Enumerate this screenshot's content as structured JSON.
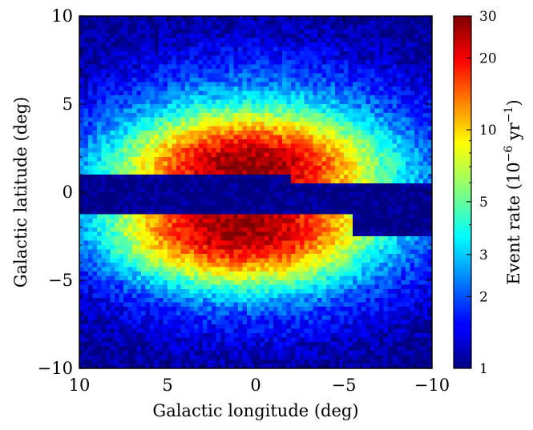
{
  "chart_data": {
    "type": "heatmap",
    "title": "",
    "xlabel": "Galactic longitude (deg)",
    "ylabel": "Galactic latitude (deg)",
    "xlim": [
      10,
      -10
    ],
    "ylim": [
      -10,
      10
    ],
    "x_ticks": [
      10,
      5,
      0,
      -5,
      -10
    ],
    "x_tick_labels": [
      "10",
      "5",
      "0",
      "−5",
      "−10"
    ],
    "y_ticks": [
      -10,
      -5,
      0,
      5,
      10
    ],
    "y_tick_labels": [
      "−10",
      "−5",
      "0",
      "5",
      "10"
    ],
    "grid": false,
    "bins": [
      80,
      80
    ],
    "colormap": "jet",
    "colorbar": {
      "label_prefix": "Event rate (10",
      "label_exp1": "−6",
      "label_mid": " yr",
      "label_exp2": "−1",
      "label_suffix": ")",
      "scale": "log",
      "range": [
        1,
        30
      ],
      "ticks": [
        1,
        2,
        3,
        5,
        10,
        20,
        30
      ],
      "tick_labels": [
        "1",
        "2",
        "3",
        "5",
        "10",
        "20",
        "30"
      ]
    },
    "structure": {
      "peak_rate": 28,
      "background_rate": 1,
      "north_lobe_peak_b": 1.3,
      "south_lobe_peak_b": -2.0,
      "extinction_band_b": [
        -1.2,
        0.9
      ],
      "extinction_band_rate": 1
    }
  }
}
